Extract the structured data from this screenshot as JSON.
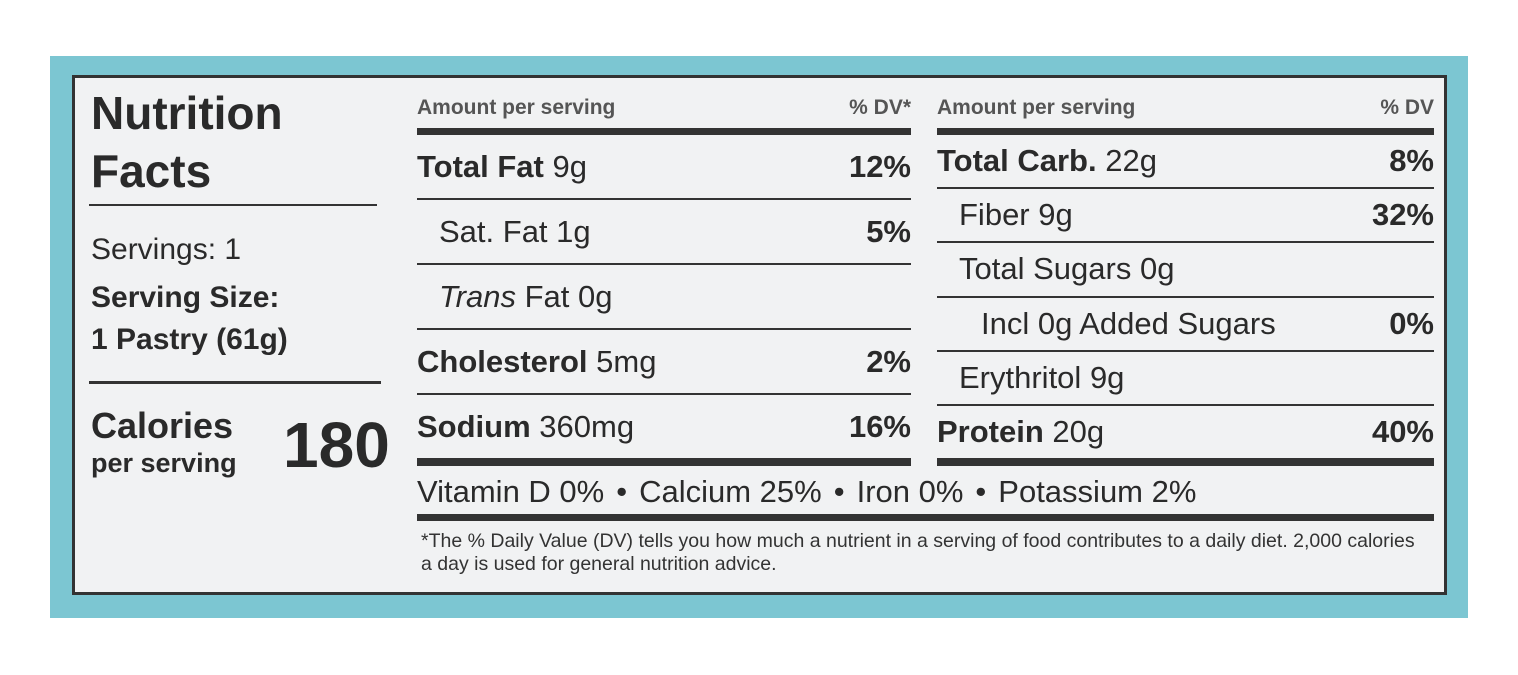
{
  "label": {
    "title": [
      "Nutrition",
      "Facts"
    ],
    "servings": "Servings: 1",
    "serving_size_label": "Serving Size:",
    "serving_size": "1 Pastry (61g)",
    "calories_label": "Calories",
    "calories_sub": "per serving",
    "calories": "180",
    "left_table": {
      "header": {
        "amount": "Amount per serving",
        "dv": "% DV*"
      },
      "rows": [
        {
          "name": "Total Fat",
          "amount": "9g",
          "dv": "12%",
          "bold": true,
          "indent": 0
        },
        {
          "name": "Sat. Fat",
          "amount": "1g",
          "dv": "5%",
          "bold": false,
          "indent": 1
        },
        {
          "name": "Trans",
          "amount": "Fat 0g",
          "bold": false,
          "italic": true,
          "indent": 1
        },
        {
          "name": "Cholesterol",
          "amount": "5mg",
          "dv": "2%",
          "bold": true,
          "indent": 0
        },
        {
          "name": "Sodium",
          "amount": "360mg",
          "dv": "16%",
          "bold": true,
          "indent": 0
        }
      ]
    },
    "right_table": {
      "header": {
        "amount": "Amount per serving",
        "dv": "% DV"
      },
      "rows": [
        {
          "name": "Total Carb.",
          "amount": "22g",
          "dv": "8%",
          "bold": true,
          "indent": 0
        },
        {
          "name": "Fiber",
          "amount": "9g",
          "dv": "32%",
          "bold": false,
          "indent": 1
        },
        {
          "name": "Total Sugars",
          "amount": "0g",
          "bold": false,
          "indent": 1
        },
        {
          "name": "Incl 0g Added Sugars",
          "amount": "",
          "dv": "0%",
          "bold": false,
          "indent": 2
        },
        {
          "name": "Erythritol",
          "amount": "9g",
          "bold": false,
          "indent": 1
        },
        {
          "name": "Protein",
          "amount": "20g",
          "dv": "40%",
          "bold": true,
          "indent": 0
        }
      ]
    },
    "vitamins": [
      "Vitamin D 0%",
      "Calcium 25%",
      "Iron 0%",
      "Potassium 2%"
    ],
    "separator": "•",
    "footnote": "*The % Daily Value (DV) tells you how much a nutrient in a serving of food contributes to a daily diet. 2,000 calories a day is used for general nutrition advice."
  }
}
